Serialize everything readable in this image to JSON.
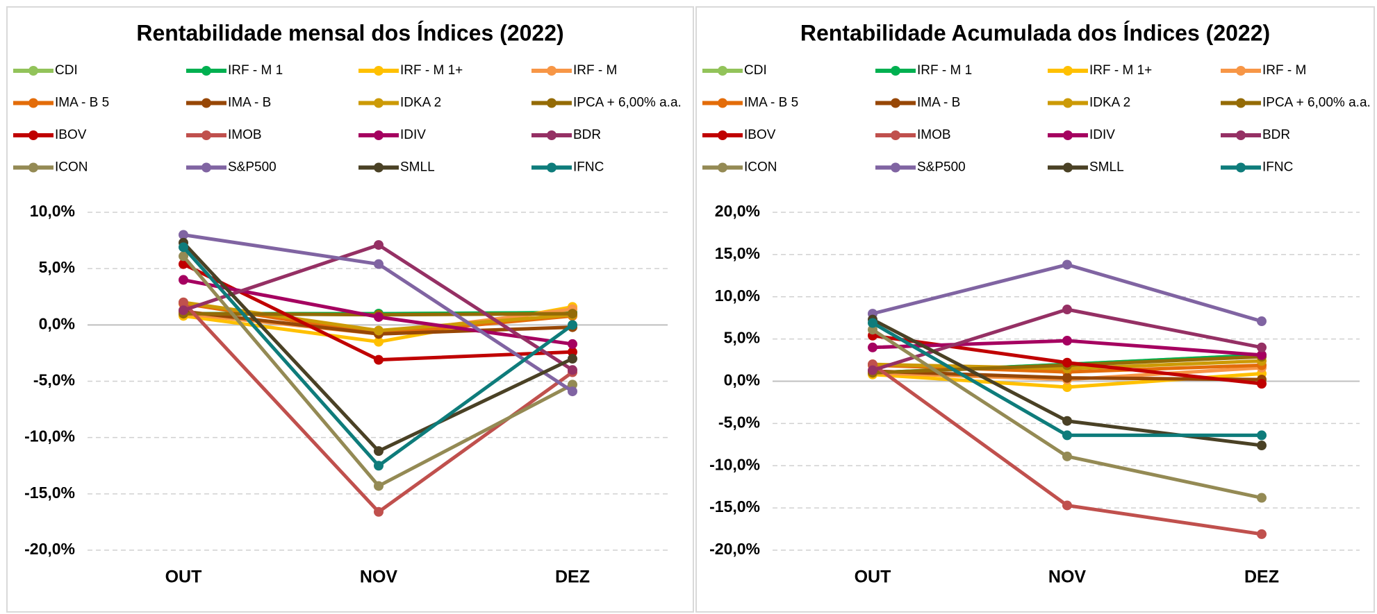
{
  "chart_data": [
    {
      "type": "line",
      "title": "Rentabilidade mensal dos Índices (2022)",
      "categories": [
        "OUT",
        "NOV",
        "DEZ"
      ],
      "ylim": [
        -20,
        10
      ],
      "yticks": [
        {
          "value": -20,
          "label": "-20,0%"
        },
        {
          "value": -15,
          "label": "-15,0%"
        },
        {
          "value": -10,
          "label": "-10,0%"
        },
        {
          "value": -5,
          "label": "-5,0%"
        },
        {
          "value": 0,
          "label": "0,0%"
        },
        {
          "value": 5,
          "label": "5,0%"
        },
        {
          "value": 10,
          "label": "10,0%"
        }
      ],
      "grid": true,
      "legend": "top",
      "series": [
        {
          "name": "CDI",
          "color": "#92c35a",
          "values": [
            1.0,
            1.0,
            1.1
          ]
        },
        {
          "name": "IRF - M 1",
          "color": "#00b050",
          "values": [
            1.0,
            1.0,
            1.1
          ]
        },
        {
          "name": "IRF - M 1+",
          "color": "#ffc000",
          "values": [
            0.8,
            -1.5,
            1.6
          ]
        },
        {
          "name": "IRF - M",
          "color": "#f79646",
          "values": [
            1.0,
            -0.8,
            1.4
          ]
        },
        {
          "name": "IMA - B 5",
          "color": "#e36c09",
          "values": [
            1.9,
            -0.8,
            0.8
          ]
        },
        {
          "name": "IMA - B",
          "color": "#974706",
          "values": [
            1.2,
            -0.8,
            -0.2
          ]
        },
        {
          "name": "IDKA 2",
          "color": "#cc9a06",
          "values": [
            2.0,
            -0.5,
            0.9
          ]
        },
        {
          "name": "IPCA + 6,00% a.a.",
          "color": "#946b06",
          "values": [
            1.0,
            0.9,
            1.0
          ]
        },
        {
          "name": "IBOV",
          "color": "#c00000",
          "values": [
            5.4,
            -3.1,
            -2.4
          ]
        },
        {
          "name": "IMOB",
          "color": "#c0504d",
          "values": [
            2.0,
            -16.6,
            -4.2
          ]
        },
        {
          "name": "IDIV",
          "color": "#a50060",
          "values": [
            4.0,
            0.7,
            -1.7
          ]
        },
        {
          "name": "BDR",
          "color": "#953064",
          "values": [
            1.3,
            7.1,
            -4.0
          ]
        },
        {
          "name": "ICON",
          "color": "#948a54",
          "values": [
            6.1,
            -14.3,
            -5.3
          ]
        },
        {
          "name": "S&P500",
          "color": "#8064a2",
          "values": [
            8.0,
            5.4,
            -5.9
          ]
        },
        {
          "name": "SMLL",
          "color": "#4a4125",
          "values": [
            7.3,
            -11.2,
            -3.0
          ]
        },
        {
          "name": "IFNC",
          "color": "#0e7c7b",
          "values": [
            6.9,
            -12.5,
            0.0
          ]
        }
      ]
    },
    {
      "type": "line",
      "title": "Rentabilidade Acumulada dos Índices (2022)",
      "categories": [
        "OUT",
        "NOV",
        "DEZ"
      ],
      "ylim": [
        -20,
        20
      ],
      "yticks": [
        {
          "value": -20,
          "label": "-20,0%"
        },
        {
          "value": -15,
          "label": "-15,0%"
        },
        {
          "value": -10,
          "label": "-10,0%"
        },
        {
          "value": -5,
          "label": "-5,0%"
        },
        {
          "value": 0,
          "label": "0,0%"
        },
        {
          "value": 5,
          "label": "5,0%"
        },
        {
          "value": 10,
          "label": "10,0%"
        },
        {
          "value": 15,
          "label": "15,0%"
        },
        {
          "value": 20,
          "label": "20,0%"
        }
      ],
      "grid": true,
      "legend": "top",
      "series": [
        {
          "name": "CDI",
          "color": "#92c35a",
          "values": [
            1.0,
            2.0,
            3.1
          ]
        },
        {
          "name": "IRF - M 1",
          "color": "#00b050",
          "values": [
            1.0,
            2.0,
            3.1
          ]
        },
        {
          "name": "IRF - M 1+",
          "color": "#ffc000",
          "values": [
            0.8,
            -0.7,
            0.9
          ]
        },
        {
          "name": "IRF - M",
          "color": "#f79646",
          "values": [
            1.0,
            0.2,
            1.6
          ]
        },
        {
          "name": "IMA - B 5",
          "color": "#e36c09",
          "values": [
            1.9,
            1.1,
            1.9
          ]
        },
        {
          "name": "IMA - B",
          "color": "#974706",
          "values": [
            1.2,
            0.4,
            0.2
          ]
        },
        {
          "name": "IDKA 2",
          "color": "#cc9a06",
          "values": [
            2.0,
            1.5,
            2.4
          ]
        },
        {
          "name": "IPCA + 6,00% a.a.",
          "color": "#946b06",
          "values": [
            1.0,
            1.9,
            2.9
          ]
        },
        {
          "name": "IBOV",
          "color": "#c00000",
          "values": [
            5.4,
            2.2,
            -0.3
          ]
        },
        {
          "name": "IMOB",
          "color": "#c0504d",
          "values": [
            2.0,
            -14.7,
            -18.1
          ]
        },
        {
          "name": "IDIV",
          "color": "#a50060",
          "values": [
            4.0,
            4.8,
            3.1
          ]
        },
        {
          "name": "BDR",
          "color": "#953064",
          "values": [
            1.3,
            8.5,
            4.0
          ]
        },
        {
          "name": "ICON",
          "color": "#948a54",
          "values": [
            6.1,
            -8.9,
            -13.8
          ]
        },
        {
          "name": "S&P500",
          "color": "#8064a2",
          "values": [
            8.0,
            13.8,
            7.1
          ]
        },
        {
          "name": "SMLL",
          "color": "#4a4125",
          "values": [
            7.3,
            -4.7,
            -7.6
          ]
        },
        {
          "name": "IFNC",
          "color": "#0e7c7b",
          "values": [
            6.9,
            -6.4,
            -6.4
          ]
        }
      ]
    }
  ]
}
